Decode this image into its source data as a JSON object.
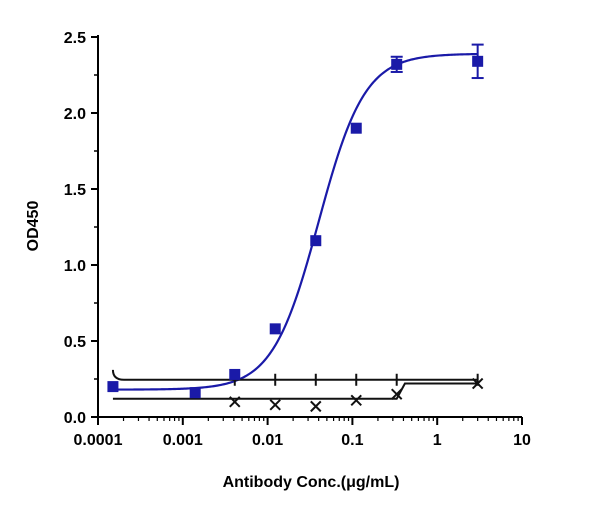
{
  "chart_data": {
    "type": "scatter",
    "title": "",
    "xlabel": "Antibody Conc.(μg/mL)",
    "ylabel": "OD450",
    "xscale": "log",
    "xlim": [
      0.0001,
      10
    ],
    "ylim": [
      0,
      2.5
    ],
    "xticks": [
      0.0001,
      0.001,
      0.01,
      0.1,
      1,
      10
    ],
    "xtick_labels": [
      "0.0001",
      "0.001",
      "0.01",
      "0.1",
      "1",
      "10"
    ],
    "yticks": [
      0,
      0.5,
      1.0,
      1.5,
      2.0,
      2.5
    ],
    "ytick_labels": [
      "0.0",
      "0.5",
      "1.0",
      "1.5",
      "2.0",
      "2.5"
    ],
    "grid": false,
    "legend": "none",
    "colors": {
      "antibody": "#1a1aa8",
      "control": "#111111"
    },
    "series": [
      {
        "marker": "square",
        "x": [
          0.00015,
          0.0014,
          0.0041,
          0.0123,
          0.037,
          0.111,
          0.333,
          3.0
        ],
        "y": [
          0.2,
          0.16,
          0.28,
          0.58,
          1.16,
          1.9,
          2.32,
          2.34
        ],
        "error": [
          0,
          0,
          0,
          0,
          0,
          0,
          0.05,
          0.11
        ],
        "fit": {
          "model": "4PL",
          "bottom": 0.18,
          "top": 2.39,
          "ec50": 0.04,
          "hill": 1.6
        }
      },
      {
        "marker": "x",
        "x": [
          0.0041,
          0.0123,
          0.037,
          0.111,
          0.333,
          3.0
        ],
        "y": [
          0.1,
          0.08,
          0.07,
          0.11,
          0.15,
          0.22
        ],
        "fit": {
          "model": "step"
        }
      }
    ]
  }
}
